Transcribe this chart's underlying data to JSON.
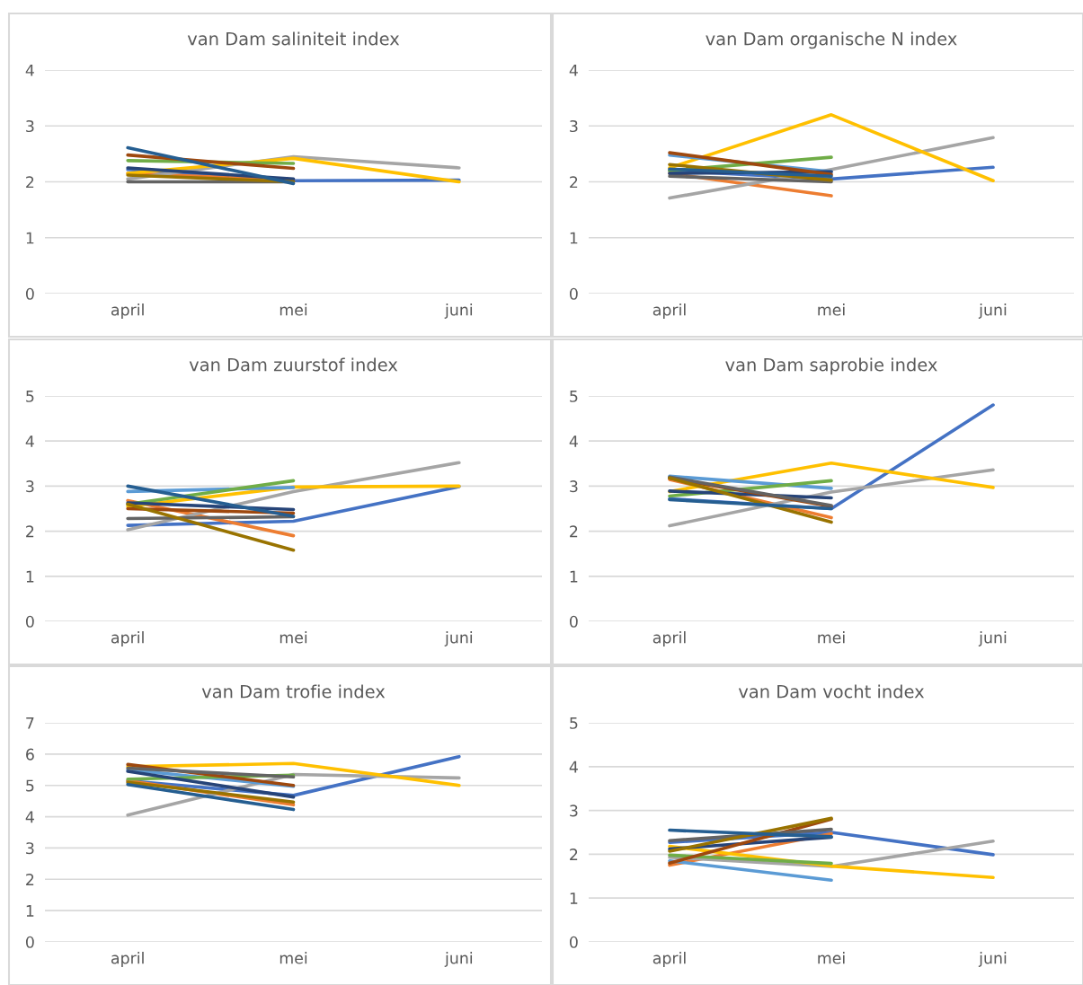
{
  "chart_data": [
    {
      "type": "line",
      "title": "van Dam saliniteit index",
      "categories": [
        "april",
        "mei",
        "juni"
      ],
      "ylim": [
        0,
        4
      ],
      "yticks": [
        0,
        1,
        2,
        3,
        4
      ],
      "grid": "y",
      "series": [
        {
          "color": "#4472c4",
          "values": [
            2.22,
            2.02,
            2.03
          ]
        },
        {
          "color": "#ed7d31",
          "values": [
            2.15,
            2.03,
            null
          ]
        },
        {
          "color": "#a5a5a5",
          "values": [
            2.05,
            2.45,
            2.25
          ]
        },
        {
          "color": "#ffc000",
          "values": [
            2.15,
            2.42,
            2.0
          ]
        },
        {
          "color": "#70ad47",
          "values": [
            2.38,
            2.33,
            null
          ]
        },
        {
          "color": "#264478",
          "values": [
            2.25,
            2.05,
            null
          ]
        },
        {
          "color": "#9e480e",
          "values": [
            2.48,
            2.24,
            null
          ]
        },
        {
          "color": "#636363",
          "values": [
            2.0,
            2.0,
            null
          ]
        },
        {
          "color": "#997300",
          "values": [
            2.12,
            2.0,
            null
          ]
        },
        {
          "color": "#255e91",
          "values": [
            2.61,
            1.97,
            null
          ]
        }
      ]
    },
    {
      "type": "line",
      "title": "van Dam organische N index",
      "categories": [
        "april",
        "mei",
        "juni"
      ],
      "ylim": [
        0,
        4
      ],
      "yticks": [
        0,
        1,
        2,
        3,
        4
      ],
      "grid": "y",
      "series": [
        {
          "color": "#4472c4",
          "values": [
            2.2,
            2.05,
            2.26
          ]
        },
        {
          "color": "#ed7d31",
          "values": [
            2.15,
            1.75,
            null
          ]
        },
        {
          "color": "#a5a5a5",
          "values": [
            1.71,
            2.22,
            2.79
          ]
        },
        {
          "color": "#ffc000",
          "values": [
            2.25,
            3.2,
            2.02
          ]
        },
        {
          "color": "#5b9bd5",
          "values": [
            2.48,
            2.18,
            null
          ]
        },
        {
          "color": "#70ad47",
          "values": [
            2.2,
            2.44,
            null
          ]
        },
        {
          "color": "#264478",
          "values": [
            2.15,
            2.18,
            null
          ]
        },
        {
          "color": "#9e480e",
          "values": [
            2.52,
            2.13,
            null
          ]
        },
        {
          "color": "#636363",
          "values": [
            2.1,
            2.0,
            null
          ]
        },
        {
          "color": "#997300",
          "values": [
            2.31,
            2.03,
            null
          ]
        },
        {
          "color": "#255e91",
          "values": [
            2.23,
            2.1,
            null
          ]
        }
      ]
    },
    {
      "type": "line",
      "title": "van Dam zuurstof index",
      "categories": [
        "april",
        "mei",
        "juni"
      ],
      "ylim": [
        0,
        5
      ],
      "yticks": [
        0,
        1,
        2,
        3,
        4,
        5
      ],
      "grid": "y",
      "series": [
        {
          "color": "#4472c4",
          "values": [
            2.13,
            2.22,
            2.99
          ]
        },
        {
          "color": "#ed7d31",
          "values": [
            2.68,
            1.9,
            null
          ]
        },
        {
          "color": "#a5a5a5",
          "values": [
            2.03,
            2.88,
            3.52
          ]
        },
        {
          "color": "#ffc000",
          "values": [
            2.55,
            2.98,
            3.0
          ]
        },
        {
          "color": "#5b9bd5",
          "values": [
            2.88,
            2.97,
            null
          ]
        },
        {
          "color": "#70ad47",
          "values": [
            2.6,
            3.12,
            null
          ]
        },
        {
          "color": "#264478",
          "values": [
            2.63,
            2.48,
            null
          ]
        },
        {
          "color": "#9e480e",
          "values": [
            2.5,
            2.4,
            null
          ]
        },
        {
          "color": "#636363",
          "values": [
            2.28,
            2.32,
            null
          ]
        },
        {
          "color": "#997300",
          "values": [
            2.6,
            1.58,
            null
          ]
        },
        {
          "color": "#255e91",
          "values": [
            3.0,
            2.33,
            null
          ]
        }
      ]
    },
    {
      "type": "line",
      "title": "van Dam saprobie index",
      "categories": [
        "april",
        "mei",
        "juni"
      ],
      "ylim": [
        0,
        5
      ],
      "yticks": [
        0,
        1,
        2,
        3,
        4,
        5
      ],
      "grid": "y",
      "series": [
        {
          "color": "#4472c4",
          "values": [
            2.72,
            2.5,
            4.8
          ]
        },
        {
          "color": "#ed7d31",
          "values": [
            3.15,
            2.3,
            null
          ]
        },
        {
          "color": "#a5a5a5",
          "values": [
            2.12,
            2.87,
            3.36
          ]
        },
        {
          "color": "#ffc000",
          "values": [
            2.88,
            3.51,
            2.97
          ]
        },
        {
          "color": "#5b9bd5",
          "values": [
            3.22,
            2.95,
            null
          ]
        },
        {
          "color": "#70ad47",
          "values": [
            2.78,
            3.12,
            null
          ]
        },
        {
          "color": "#264478",
          "values": [
            2.89,
            2.74,
            null
          ]
        },
        {
          "color": "#9e480e",
          "values": [
            3.18,
            2.55,
            null
          ]
        },
        {
          "color": "#636363",
          "values": [
            3.2,
            2.57,
            null
          ]
        },
        {
          "color": "#997300",
          "values": [
            3.18,
            2.2,
            null
          ]
        },
        {
          "color": "#255e91",
          "values": [
            2.7,
            2.5,
            null
          ]
        }
      ]
    },
    {
      "type": "line",
      "title": "van Dam trofie index",
      "categories": [
        "april",
        "mei",
        "juni"
      ],
      "ylim": [
        0,
        7
      ],
      "yticks": [
        0,
        1,
        2,
        3,
        4,
        5,
        6,
        7
      ],
      "grid": "y",
      "series": [
        {
          "color": "#4472c4",
          "values": [
            5.15,
            4.68,
            5.92
          ]
        },
        {
          "color": "#ed7d31",
          "values": [
            5.15,
            4.38,
            null
          ]
        },
        {
          "color": "#a5a5a5",
          "values": [
            4.05,
            5.35,
            5.24
          ]
        },
        {
          "color": "#ffc000",
          "values": [
            5.6,
            5.7,
            5.0
          ]
        },
        {
          "color": "#5b9bd5",
          "values": [
            5.5,
            4.97,
            null
          ]
        },
        {
          "color": "#70ad47",
          "values": [
            5.2,
            5.33,
            null
          ]
        },
        {
          "color": "#264478",
          "values": [
            5.45,
            4.63,
            null
          ]
        },
        {
          "color": "#9e480e",
          "values": [
            5.67,
            5.0,
            null
          ]
        },
        {
          "color": "#636363",
          "values": [
            5.55,
            5.27,
            null
          ]
        },
        {
          "color": "#997300",
          "values": [
            5.1,
            4.47,
            null
          ]
        },
        {
          "color": "#255e91",
          "values": [
            5.03,
            4.23,
            null
          ]
        }
      ]
    },
    {
      "type": "line",
      "title": "van Dam vocht index",
      "categories": [
        "april",
        "mei",
        "juni"
      ],
      "ylim": [
        0,
        5
      ],
      "yticks": [
        0,
        1,
        2,
        3,
        4,
        5
      ],
      "grid": "y",
      "series": [
        {
          "color": "#4472c4",
          "values": [
            2.27,
            2.5,
            1.99
          ]
        },
        {
          "color": "#ed7d31",
          "values": [
            1.75,
            2.47,
            null
          ]
        },
        {
          "color": "#a5a5a5",
          "values": [
            1.93,
            1.72,
            2.3
          ]
        },
        {
          "color": "#ffc000",
          "values": [
            2.18,
            1.73,
            1.47
          ]
        },
        {
          "color": "#5b9bd5",
          "values": [
            1.85,
            1.41,
            null
          ]
        },
        {
          "color": "#70ad47",
          "values": [
            1.98,
            1.79,
            null
          ]
        },
        {
          "color": "#264478",
          "values": [
            2.12,
            2.39,
            null
          ]
        },
        {
          "color": "#9e480e",
          "values": [
            1.8,
            2.8,
            null
          ]
        },
        {
          "color": "#636363",
          "values": [
            2.31,
            2.57,
            null
          ]
        },
        {
          "color": "#997300",
          "values": [
            2.07,
            2.82,
            null
          ]
        },
        {
          "color": "#255e91",
          "values": [
            2.55,
            2.4,
            null
          ]
        }
      ]
    }
  ]
}
